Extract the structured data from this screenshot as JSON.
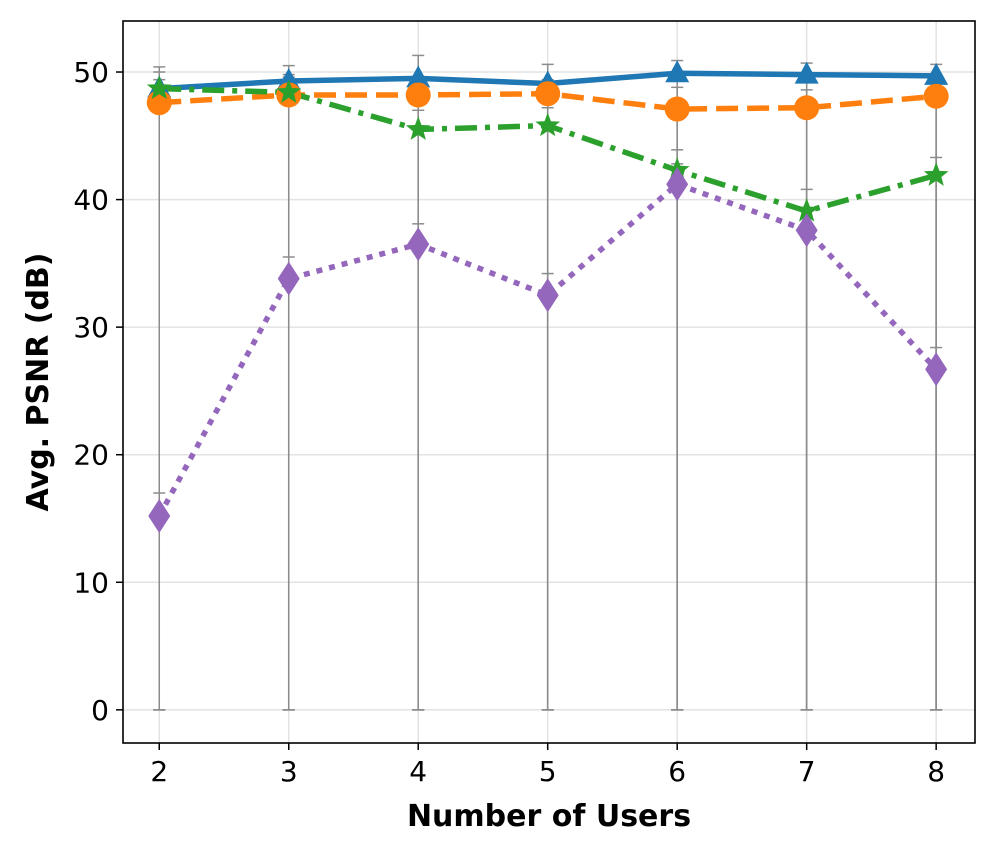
{
  "chart_data": {
    "type": "line",
    "title": "",
    "xlabel": "Number of Users",
    "ylabel": "Avg. PSNR (dB)",
    "x": [
      2,
      3,
      4,
      5,
      6,
      7,
      8
    ],
    "xlim": [
      1.72,
      8.3
    ],
    "ylim": [
      -2.6,
      54
    ],
    "yticks": [
      0,
      10,
      20,
      30,
      40,
      50
    ],
    "grid": true,
    "legend": "none",
    "series": [
      {
        "color": "#1f77b4",
        "linestyle": "solid",
        "marker": "triangle",
        "values": [
          48.7,
          49.3,
          49.5,
          49.1,
          49.9,
          49.8,
          49.7
        ],
        "error_low": [
          0,
          0,
          0,
          0,
          0,
          0,
          0
        ],
        "error_high": [
          50.4,
          50.5,
          51.3,
          50.6,
          50.9,
          50.7,
          50.6
        ]
      },
      {
        "color": "#ff7f0e",
        "linestyle": "dashed",
        "marker": "circle",
        "values": [
          47.6,
          48.2,
          48.2,
          48.3,
          47.1,
          47.2,
          48.1
        ],
        "error_low": [
          0,
          0,
          0,
          0,
          0,
          0,
          0
        ],
        "error_high": [
          49.4,
          49.6,
          49.6,
          49.4,
          48.8,
          48.6,
          49.5
        ]
      },
      {
        "color": "#2ca02c",
        "linestyle": "dashdot",
        "marker": "star",
        "values": [
          48.7,
          48.4,
          45.5,
          45.8,
          42.3,
          39.1,
          41.9
        ],
        "error_low": [
          0,
          0,
          0,
          0,
          0,
          0,
          0
        ],
        "error_high": [
          50.0,
          49.8,
          47.0,
          47.2,
          43.9,
          40.8,
          43.3
        ]
      },
      {
        "color": "#9467bd",
        "linestyle": "dotted",
        "marker": "diamond",
        "values": [
          15.2,
          33.8,
          36.5,
          32.5,
          41.2,
          37.6,
          26.7
        ],
        "error_low": [
          0,
          0,
          0,
          0,
          0,
          0,
          0
        ],
        "error_high": [
          17.0,
          35.5,
          38.1,
          34.2,
          42.8,
          39.2,
          28.4
        ]
      }
    ]
  }
}
